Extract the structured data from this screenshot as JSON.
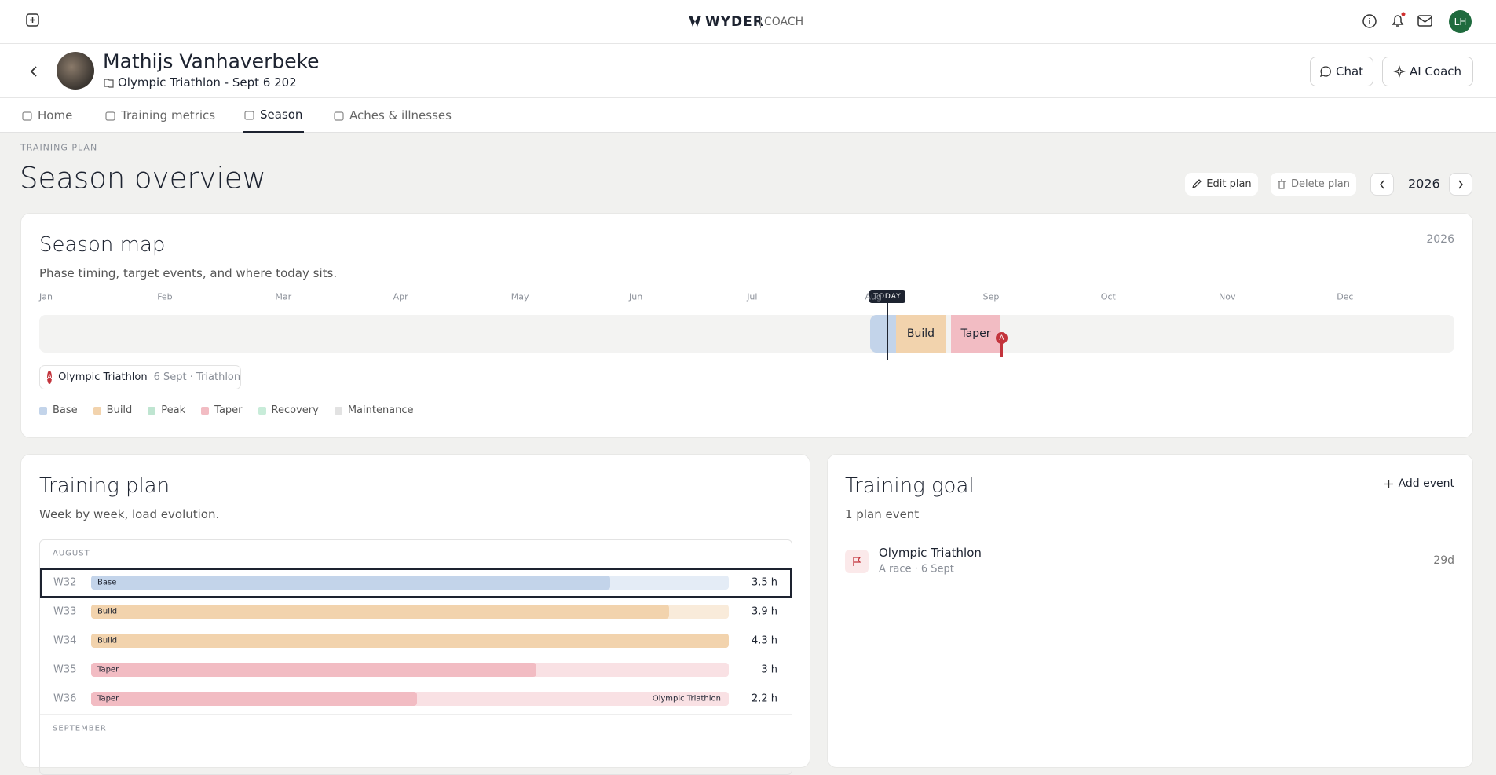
{
  "header": {
    "logo": "WYDER",
    "logo_sub": "COACH",
    "avatar": "LH"
  },
  "athlete": {
    "name": "Mathijs Vanhaverbeke",
    "event": "Olympic Triathlon - Sept 6 202",
    "actions": [
      "Chat",
      "AI Coach"
    ]
  },
  "tabs": [
    "Home",
    "Training metrics",
    "Season",
    "Aches & illnesses"
  ],
  "page": {
    "eyebrow": "TRAINING PLAN",
    "title": "Season overview",
    "buttons": [
      "Edit plan",
      "Delete plan"
    ],
    "year": "2026"
  },
  "season_map": {
    "title": "Season map",
    "subtitle": "Phase timing, target events, and where today sits.",
    "year": "2026",
    "months": [
      "Jan",
      "Feb",
      "Mar",
      "Apr",
      "May",
      "Jun",
      "Jul",
      "Aug",
      "Sep",
      "Oct",
      "Nov",
      "Dec"
    ],
    "today": "TODAY",
    "phases": [
      "Build",
      "Taper"
    ],
    "race_marker": "A",
    "event": {
      "badge": "A",
      "name": "Olympic Triathlon",
      "meta": "6 Sept · Triathlon"
    },
    "legend": [
      {
        "name": "Base",
        "color": "#c3d4ea"
      },
      {
        "name": "Build",
        "color": "#f2d3ad"
      },
      {
        "name": "Peak",
        "color": "#bfe5d1"
      },
      {
        "name": "Taper",
        "color": "#f2bcc3"
      },
      {
        "name": "Recovery",
        "color": "#c8ecd9"
      },
      {
        "name": "Maintenance",
        "color": "#e2e2e2"
      }
    ]
  },
  "training_plan": {
    "title": "Training plan",
    "subtitle": "Week by week, load evolution.",
    "months": [
      "AUGUST",
      "SEPTEMBER"
    ],
    "weeks": [
      {
        "week": "W32",
        "phase": "Base",
        "hours": 3.5,
        "hours_label": "3.5 h"
      },
      {
        "week": "W33",
        "phase": "Build",
        "hours": 3.9,
        "hours_label": "3.9 h"
      },
      {
        "week": "W34",
        "phase": "Build",
        "hours": 4.3,
        "hours_label": "4.3 h"
      },
      {
        "week": "W35",
        "phase": "Taper",
        "hours": 3,
        "hours_label": "3 h"
      },
      {
        "week": "W36",
        "phase": "Taper",
        "hours": 2.2,
        "hours_label": "2.2 h",
        "event": "Olympic Triathlon"
      }
    ]
  },
  "training_goal": {
    "title": "Training goal",
    "subtitle": "1 plan event",
    "add": "Add event",
    "event": {
      "name": "Olympic Triathlon",
      "meta": "A race · 6 Sept",
      "days": "29d"
    }
  }
}
